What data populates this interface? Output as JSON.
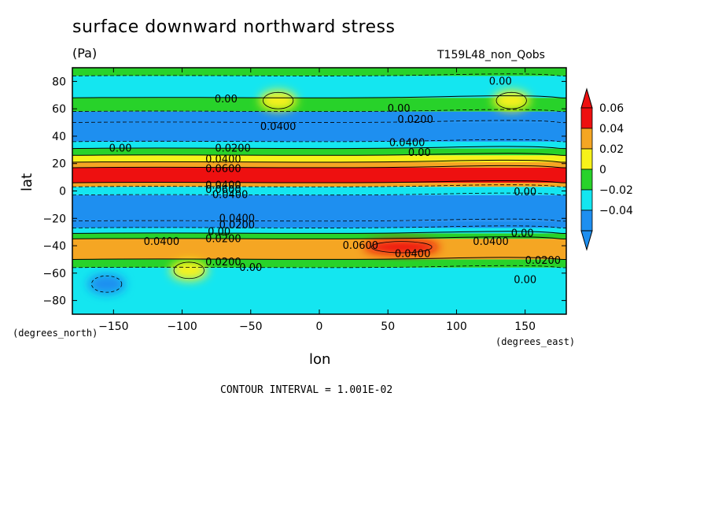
{
  "chart_data": {
    "type": "heatmap",
    "title": "surface downward northward stress",
    "units": "(Pa)",
    "experiment": "T159L48_non_Qobs",
    "xlabel": "lon",
    "ylabel": "lat",
    "xunits": "(degrees_east)",
    "yunits": "(degrees_north)",
    "footer": "CONTOUR INTERVAL = 1.001E-02",
    "xlim": [
      -180,
      180
    ],
    "ylim": [
      -90,
      90
    ],
    "xticks": [
      -150,
      -100,
      -50,
      0,
      50,
      100,
      150
    ],
    "xtick_labels": [
      "−150",
      "−100",
      "−50",
      "0",
      "50",
      "100",
      "150"
    ],
    "yticks": [
      80,
      60,
      40,
      20,
      0,
      -20,
      -40,
      -60,
      -80
    ],
    "ytick_labels": [
      "80",
      "60",
      "40",
      "20",
      "0",
      "−20",
      "−40",
      "−60",
      "−80"
    ],
    "colorbar": {
      "levels": [
        "0.06",
        "0.04",
        "0.02",
        "0",
        "−0.02",
        "−0.04"
      ],
      "colors": [
        "#ee1010",
        "#f5a623",
        "#f7f21a",
        "#28d22a",
        "#14e6f0",
        "#1e8ff0"
      ],
      "extend": "both"
    },
    "zonal_mean_bands": [
      {
        "lat": [
          84,
          90
        ],
        "value": 0.005
      },
      {
        "lat": [
          68,
          84
        ],
        "value": -0.01
      },
      {
        "lat": [
          58,
          68
        ],
        "value": 0.005
      },
      {
        "lat": [
          50,
          58
        ],
        "value": -0.025
      },
      {
        "lat": [
          36,
          50
        ],
        "value": -0.035
      },
      {
        "lat": [
          31,
          36
        ],
        "value": -0.015
      },
      {
        "lat": [
          26,
          31
        ],
        "value": 0.01
      },
      {
        "lat": [
          21,
          26
        ],
        "value": 0.03
      },
      {
        "lat": [
          17,
          21
        ],
        "value": 0.05
      },
      {
        "lat": [
          6,
          17
        ],
        "value": 0.07
      },
      {
        "lat": [
          3,
          6
        ],
        "value": 0.05
      },
      {
        "lat": [
          -3,
          3
        ],
        "value": -0.01
      },
      {
        "lat": [
          -22,
          -3
        ],
        "value": -0.045
      },
      {
        "lat": [
          -27,
          -22
        ],
        "value": -0.03
      },
      {
        "lat": [
          -31,
          -27
        ],
        "value": -0.01
      },
      {
        "lat": [
          -35,
          -31
        ],
        "value": 0.01
      },
      {
        "lat": [
          -50,
          -35
        ],
        "value": 0.045
      },
      {
        "lat": [
          -56,
          -50
        ],
        "value": 0.015
      },
      {
        "lat": [
          -90,
          -56
        ],
        "value": -0.01
      }
    ],
    "features": [
      {
        "lon": -30,
        "lat": 66,
        "value": 0.035,
        "label": "high"
      },
      {
        "lon": 140,
        "lat": 66,
        "value": 0.035,
        "label": "high"
      },
      {
        "lon": 60,
        "lat": -41,
        "value": 0.065,
        "label": "max"
      },
      {
        "lon": -155,
        "lat": -68,
        "value": -0.035,
        "label": "min"
      },
      {
        "lon": -95,
        "lat": -58,
        "value": 0.025,
        "label": "high"
      }
    ],
    "contour_labels": [
      {
        "text": "0.00",
        "lon": 132,
        "lat": 80
      },
      {
        "text": "0.00",
        "lon": -68,
        "lat": 67
      },
      {
        "text": "0.00",
        "lon": 58,
        "lat": 60
      },
      {
        "text": "0.0200",
        "lon": 70,
        "lat": 52
      },
      {
        "text": "0.0400",
        "lon": -30,
        "lat": 47
      },
      {
        "text": "0.0400",
        "lon": 64,
        "lat": 35
      },
      {
        "text": "0.00",
        "lon": 73,
        "lat": 28
      },
      {
        "text": "0.00",
        "lon": -145,
        "lat": 31
      },
      {
        "text": "0.0200",
        "lon": -63,
        "lat": 31
      },
      {
        "text": "0.0400",
        "lon": -70,
        "lat": 23
      },
      {
        "text": "0.0600",
        "lon": -70,
        "lat": 16
      },
      {
        "text": "0.0400",
        "lon": -70,
        "lat": 4
      },
      {
        "text": "0.0600",
        "lon": -70,
        "lat": 1
      },
      {
        "text": "0.0400",
        "lon": -65,
        "lat": -3
      },
      {
        "text": "0.00",
        "lon": 150,
        "lat": -1
      },
      {
        "text": "0.0400",
        "lon": -60,
        "lat": -20
      },
      {
        "text": "0.0200",
        "lon": -60,
        "lat": -25
      },
      {
        "text": "0.00",
        "lon": -73,
        "lat": -30
      },
      {
        "text": "0.0200",
        "lon": -70,
        "lat": -35
      },
      {
        "text": "0.0400",
        "lon": -115,
        "lat": -37
      },
      {
        "text": "0.0600",
        "lon": 30,
        "lat": -40
      },
      {
        "text": "0.0400",
        "lon": 68,
        "lat": -46
      },
      {
        "text": "0.00",
        "lon": 148,
        "lat": -31
      },
      {
        "text": "0.0400",
        "lon": 125,
        "lat": -37
      },
      {
        "text": "0.0200",
        "lon": -70,
        "lat": -52
      },
      {
        "text": "0.00",
        "lon": -50,
        "lat": -56
      },
      {
        "text": "0.0200",
        "lon": 163,
        "lat": -51
      },
      {
        "text": "0.00",
        "lon": 150,
        "lat": -65
      }
    ]
  }
}
